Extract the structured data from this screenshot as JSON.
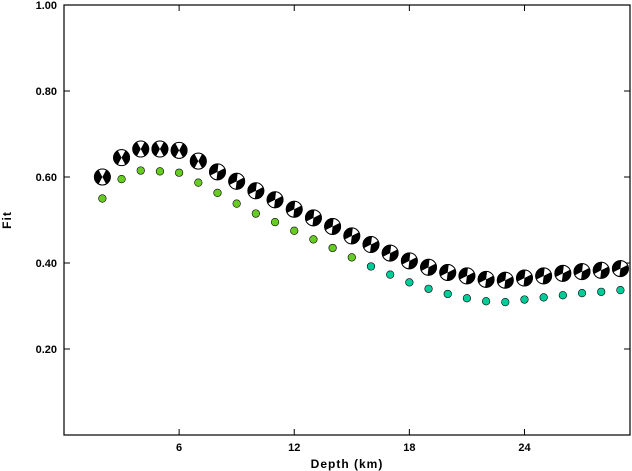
{
  "chart_data": {
    "type": "scatter",
    "title": "",
    "xlabel": "Depth (km)",
    "ylabel": "Fit",
    "xlim": [
      0,
      29.5
    ],
    "ylim": [
      0,
      1.0
    ],
    "x_ticks": [
      6,
      12,
      18,
      24
    ],
    "x_tick_labels": [
      "6",
      "12",
      "18",
      "24"
    ],
    "y_ticks": [
      0.2,
      0.4,
      0.6,
      0.8,
      1.0
    ],
    "y_tick_labels": [
      "0.20",
      "0.40",
      "0.60",
      "0.80",
      "1.00"
    ],
    "grid": false,
    "series": [
      {
        "marker": "focal-mechanism-beachball",
        "color": "#000000",
        "x": [
          2,
          3,
          4,
          5,
          6,
          7,
          8,
          9,
          10,
          11,
          12,
          13,
          14,
          15,
          16,
          17,
          18,
          19,
          20,
          21,
          22,
          23,
          24,
          25,
          26,
          27,
          28,
          29
        ],
        "y": [
          0.6,
          0.645,
          0.665,
          0.665,
          0.662,
          0.637,
          0.612,
          0.59,
          0.568,
          0.547,
          0.525,
          0.505,
          0.485,
          0.463,
          0.443,
          0.423,
          0.405,
          0.39,
          0.378,
          0.37,
          0.362,
          0.36,
          0.365,
          0.37,
          0.376,
          0.38,
          0.383,
          0.387
        ]
      },
      {
        "marker": "filled-circle",
        "colors": [
          "#66cc22",
          "#00cc99"
        ],
        "x": [
          2,
          3,
          4,
          5,
          6,
          7,
          8,
          9,
          10,
          11,
          12,
          13,
          14,
          15,
          16,
          17,
          18,
          19,
          20,
          21,
          22,
          23,
          24,
          25,
          26,
          27,
          28,
          29
        ],
        "y": [
          0.55,
          0.595,
          0.615,
          0.613,
          0.61,
          0.587,
          0.563,
          0.538,
          0.515,
          0.495,
          0.475,
          0.455,
          0.435,
          0.413,
          0.392,
          0.373,
          0.355,
          0.34,
          0.328,
          0.318,
          0.311,
          0.309,
          0.315,
          0.32,
          0.325,
          0.33,
          0.333,
          0.337
        ]
      }
    ]
  }
}
